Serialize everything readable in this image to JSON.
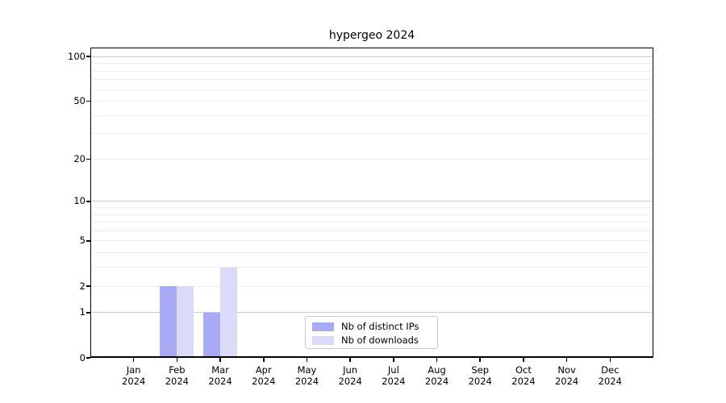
{
  "title": "hypergeo 2024",
  "chart_data": {
    "type": "bar",
    "title": "hypergeo 2024",
    "categories": [
      "Jan 2024",
      "Feb 2024",
      "Mar 2024",
      "Apr 2024",
      "May 2024",
      "Jun 2024",
      "Jul 2024",
      "Aug 2024",
      "Sep 2024",
      "Oct 2024",
      "Nov 2024",
      "Dec 2024"
    ],
    "x_tick_line1": [
      "Jan",
      "Feb",
      "Mar",
      "Apr",
      "May",
      "Jun",
      "Jul",
      "Aug",
      "Sep",
      "Oct",
      "Nov",
      "Dec"
    ],
    "x_tick_line2": "2024",
    "series": [
      {
        "name": "Nb of distinct IPs",
        "color": "#a9aaf4",
        "values": [
          0,
          2,
          1,
          0,
          0,
          0,
          0,
          0,
          0,
          0,
          0,
          0
        ]
      },
      {
        "name": "Nb of downloads",
        "color": "#d9dbf8",
        "values": [
          0,
          2,
          3,
          0,
          0,
          0,
          0,
          0,
          0,
          0,
          0,
          0
        ]
      }
    ],
    "y_scale": "log1p",
    "y_tick_values": [
      0,
      1,
      2,
      5,
      10,
      20,
      50,
      100
    ],
    "y_tick_labels": [
      "0",
      "1",
      "2",
      "5",
      "10",
      "20",
      "50",
      "100"
    ],
    "ylim": [
      0,
      115
    ],
    "grid": {
      "major_values": [
        1,
        10,
        100
      ],
      "minor_values": [
        2,
        3,
        4,
        5,
        6,
        7,
        8,
        9,
        20,
        30,
        40,
        50,
        60,
        70,
        80,
        90
      ],
      "major_color": "#c8c8c8",
      "minor_color": "#ededed"
    },
    "legend": {
      "position": "lower center",
      "items": [
        "Nb of distinct IPs",
        "Nb of downloads"
      ]
    }
  },
  "colors": {
    "background": "#ffffff",
    "spine": "#000000",
    "text": "#000000"
  }
}
